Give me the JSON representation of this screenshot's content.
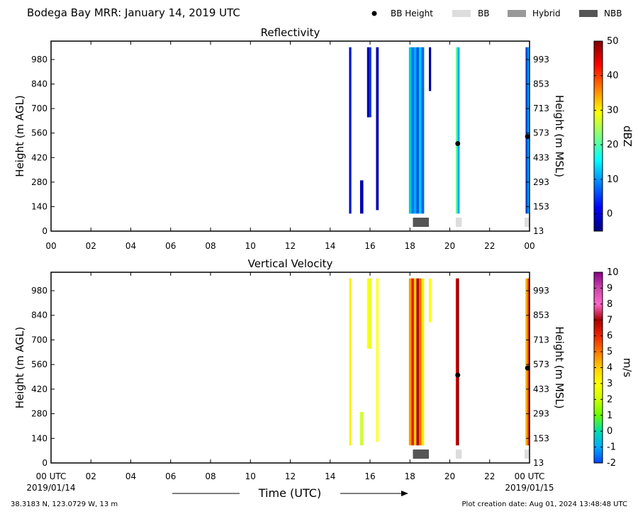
{
  "figure": {
    "title": "Bodega Bay MRR:  January 14, 2019 UTC",
    "location": "38.3183 N, 123.0729 W, 13 m",
    "creation": "Plot creation date: Aug 01, 2024 13:48:48 UTC",
    "legend": [
      {
        "label": "BB Height",
        "type": "dot",
        "color": "#000000"
      },
      {
        "label": "BB",
        "type": "box",
        "color": "#dddddd"
      },
      {
        "label": "Hybrid",
        "type": "box",
        "color": "#999999"
      },
      {
        "label": "NBB",
        "type": "box",
        "color": "#555555"
      }
    ],
    "xaxis": {
      "label": "Time (UTC)",
      "ticks": [
        "00",
        "02",
        "04",
        "06",
        "08",
        "10",
        "12",
        "14",
        "16",
        "18",
        "20",
        "22",
        "00"
      ],
      "bottom_ticks": [
        "00 UTC",
        "02",
        "04",
        "06",
        "08",
        "10",
        "12",
        "14",
        "16",
        "18",
        "20",
        "22",
        "00 UTC"
      ],
      "start_date": "2019/01/14",
      "end_date": "2019/01/15"
    },
    "yaxis": {
      "left_label": "Height (m AGL)",
      "right_label": "Height (m MSL)",
      "left_ticks": [
        "0",
        "140",
        "280",
        "420",
        "560",
        "700",
        "840",
        "980"
      ],
      "right_ticks": [
        "13",
        "153",
        "293",
        "433",
        "573",
        "713",
        "853",
        "993"
      ]
    }
  },
  "chart_data": [
    {
      "type": "heatmap",
      "title": "Reflectivity",
      "xlabel": "",
      "ylabel": "Height (m AGL)",
      "y2label": "Height (m MSL)",
      "xlim": [
        0,
        24
      ],
      "ylim": [
        0,
        1085
      ],
      "colorbar": {
        "label": "dBZ",
        "range": [
          -5,
          50
        ],
        "ticks": [
          "0",
          "10",
          "20",
          "30",
          "40",
          "50"
        ],
        "colors": [
          "#00007f",
          "#0000ff",
          "#007fff",
          "#00ffff",
          "#7fff7f",
          "#ffff00",
          "#ff7f00",
          "#ff0000",
          "#7f0000"
        ]
      },
      "bands": [
        {
          "x_start": 14.95,
          "x_end": 15.05,
          "y_bottom": 100,
          "y_top": 1050,
          "colors": [
            "#0000b0",
            "#0022cc"
          ]
        },
        {
          "x_start": 15.5,
          "x_end": 15.65,
          "y_bottom": 100,
          "y_top": 290,
          "colors": [
            "#0000aa"
          ]
        },
        {
          "x_start": 15.85,
          "x_end": 16.05,
          "y_bottom": 650,
          "y_top": 1050,
          "colors": [
            "#0000aa",
            "#0033dd"
          ]
        },
        {
          "x_start": 16.3,
          "x_end": 16.42,
          "y_bottom": 120,
          "y_top": 1050,
          "colors": [
            "#0000aa"
          ]
        },
        {
          "x_start": 17.95,
          "x_end": 18.7,
          "y_bottom": 100,
          "y_top": 1050,
          "colors": [
            "#00cccc",
            "#0077ff",
            "#00aaff",
            "#0055dd",
            "#00ccff",
            "#0066ee"
          ]
        },
        {
          "x_start": 18.95,
          "x_end": 19.05,
          "y_bottom": 800,
          "y_top": 1050,
          "colors": [
            "#0000aa"
          ]
        },
        {
          "x_start": 20.3,
          "x_end": 20.48,
          "y_bottom": 100,
          "y_top": 1050,
          "colors": [
            "#66ff99",
            "#00aaff"
          ]
        },
        {
          "x_start": 23.8,
          "x_end": 24.0,
          "y_bottom": 100,
          "y_top": 1050,
          "colors": [
            "#0044cc",
            "#00aaff"
          ]
        }
      ],
      "bb_height": [
        {
          "x": 20.4,
          "y": 500
        },
        {
          "x": 23.9,
          "y": 540
        }
      ],
      "bb_type": [
        {
          "x_start": 18.15,
          "x_end": 18.95,
          "kind": "NBB"
        },
        {
          "x_start": 20.3,
          "x_end": 20.6,
          "kind": "BB"
        },
        {
          "x_start": 23.75,
          "x_end": 24.0,
          "kind": "BB"
        }
      ]
    },
    {
      "type": "heatmap",
      "title": "Vertical Velocity",
      "xlabel": "Time (UTC)",
      "ylabel": "Height (m AGL)",
      "y2label": "Height (m MSL)",
      "xlim": [
        0,
        24
      ],
      "ylim": [
        0,
        1085
      ],
      "colorbar": {
        "label": "m/s",
        "range": [
          -2,
          10
        ],
        "ticks": [
          "-2",
          "-1",
          "0",
          "1",
          "2",
          "3",
          "4",
          "5",
          "6",
          "7",
          "8",
          "9",
          "10"
        ],
        "colors": [
          "#0044ff",
          "#00aaff",
          "#00ddaa",
          "#66ff00",
          "#ccff00",
          "#ffff00",
          "#ffcc00",
          "#ff7700",
          "#ee2200",
          "#aa0000",
          "#ff66cc",
          "#cc44aa",
          "#880088"
        ]
      },
      "bands": [
        {
          "x_start": 14.95,
          "x_end": 15.05,
          "y_bottom": 100,
          "y_top": 1050,
          "colors": [
            "#ddff33",
            "#ffee00"
          ]
        },
        {
          "x_start": 15.5,
          "x_end": 15.65,
          "y_bottom": 100,
          "y_top": 290,
          "colors": [
            "#ccff33"
          ]
        },
        {
          "x_start": 15.85,
          "x_end": 16.05,
          "y_bottom": 650,
          "y_top": 1050,
          "colors": [
            "#ffff00",
            "#ddff33"
          ]
        },
        {
          "x_start": 16.3,
          "x_end": 16.42,
          "y_bottom": 120,
          "y_top": 1050,
          "colors": [
            "#ffff33"
          ]
        },
        {
          "x_start": 17.95,
          "x_end": 18.7,
          "y_bottom": 100,
          "y_top": 1050,
          "colors": [
            "#ff9900",
            "#dd2200",
            "#ffcc00",
            "#aa0000",
            "#ff6600",
            "#ffee00"
          ]
        },
        {
          "x_start": 18.95,
          "x_end": 19.05,
          "y_bottom": 800,
          "y_top": 1050,
          "colors": [
            "#ffff00"
          ]
        },
        {
          "x_start": 20.3,
          "x_end": 20.45,
          "y_bottom": 100,
          "y_top": 1050,
          "colors": [
            "#cc0000",
            "#880000"
          ]
        },
        {
          "x_start": 23.8,
          "x_end": 24.0,
          "y_bottom": 100,
          "y_top": 1050,
          "colors": [
            "#ffaa00",
            "#dd4400"
          ]
        }
      ],
      "bb_height": [
        {
          "x": 20.4,
          "y": 500
        },
        {
          "x": 23.9,
          "y": 540
        }
      ],
      "bb_type": [
        {
          "x_start": 18.15,
          "x_end": 18.95,
          "kind": "NBB"
        },
        {
          "x_start": 20.3,
          "x_end": 20.6,
          "kind": "BB"
        },
        {
          "x_start": 23.75,
          "x_end": 24.0,
          "kind": "BB"
        }
      ]
    }
  ]
}
